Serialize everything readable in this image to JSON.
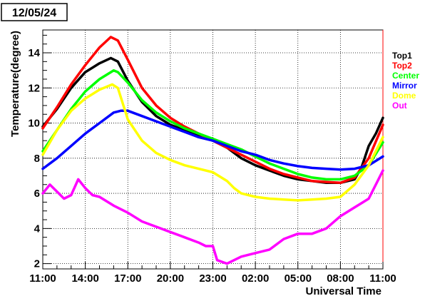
{
  "date_label": "12/05/24",
  "chart_data": {
    "type": "line",
    "title": "",
    "xlabel": "Universal Time",
    "ylabel": "Temperature(degree)",
    "x_ticks": [
      "11:00",
      "14:00",
      "17:00",
      "20:00",
      "23:00",
      "02:00",
      "05:00",
      "08:00",
      "11:00"
    ],
    "x_tick_hours": [
      0,
      3,
      6,
      9,
      12,
      15,
      18,
      21,
      24
    ],
    "xlim": [
      0,
      24
    ],
    "ylim": [
      1.7,
      15.3
    ],
    "y_ticks": [
      2,
      4,
      6,
      8,
      10,
      12,
      14
    ],
    "grid": true,
    "legend_position": "right",
    "series": [
      {
        "name": "Top1",
        "color": "#000000",
        "x": [
          0,
          1,
          2,
          3,
          4,
          4.8,
          5.3,
          6,
          7,
          8,
          9,
          10,
          11,
          12,
          13,
          14,
          15,
          16,
          17,
          18,
          19,
          20,
          21,
          22,
          22.5,
          23,
          23.5,
          24
        ],
        "y": [
          9.8,
          10.8,
          12.0,
          12.9,
          13.4,
          13.7,
          13.5,
          12.4,
          11.2,
          10.4,
          9.9,
          9.6,
          9.3,
          9.0,
          8.6,
          8.0,
          7.6,
          7.3,
          7.0,
          6.8,
          6.7,
          6.6,
          6.6,
          6.8,
          7.5,
          8.7,
          9.4,
          10.3
        ]
      },
      {
        "name": "Top2",
        "color": "#ff0000",
        "x": [
          0,
          1,
          2,
          3,
          4,
          4.8,
          5.3,
          6,
          7,
          8,
          9,
          10,
          11,
          12,
          13,
          14,
          15,
          16,
          17,
          18,
          19,
          20,
          21,
          22,
          23,
          24
        ],
        "y": [
          9.7,
          10.9,
          12.2,
          13.3,
          14.3,
          14.9,
          14.7,
          13.6,
          12.0,
          11.0,
          10.3,
          9.8,
          9.4,
          9.0,
          8.6,
          8.2,
          7.8,
          7.4,
          7.1,
          6.9,
          6.7,
          6.65,
          6.6,
          6.9,
          8.0,
          9.9
        ]
      },
      {
        "name": "Center",
        "color": "#00ff00",
        "x": [
          0,
          1,
          2,
          3,
          4,
          5,
          5.3,
          6,
          7,
          8,
          9,
          10,
          11,
          12,
          13,
          14,
          15,
          16,
          17,
          18,
          19,
          20,
          21,
          22,
          23,
          24
        ],
        "y": [
          8.4,
          9.6,
          10.8,
          11.8,
          12.5,
          13.0,
          12.9,
          12.3,
          11.3,
          10.6,
          10.1,
          9.7,
          9.4,
          9.1,
          8.8,
          8.5,
          8.1,
          7.7,
          7.4,
          7.1,
          6.9,
          6.8,
          6.8,
          7.0,
          7.6,
          8.9
        ]
      },
      {
        "name": "Mirror",
        "color": "#0000ff",
        "x": [
          0,
          1,
          2,
          3,
          4,
          5,
          5.5,
          6,
          7,
          8,
          9,
          10,
          11,
          12,
          13,
          14,
          15,
          16,
          17,
          18,
          19,
          20,
          21,
          22,
          23,
          24
        ],
        "y": [
          7.4,
          8.0,
          8.7,
          9.4,
          10.0,
          10.6,
          10.7,
          10.7,
          10.4,
          10.1,
          9.8,
          9.5,
          9.2,
          9.0,
          8.7,
          8.4,
          8.2,
          7.9,
          7.7,
          7.55,
          7.45,
          7.4,
          7.35,
          7.4,
          7.6,
          8.1
        ]
      },
      {
        "name": "Dome",
        "color": "#ffff00",
        "x": [
          0,
          1,
          2,
          3,
          4,
          4.9,
          5.3,
          6,
          7,
          8,
          9,
          10,
          11,
          12,
          13,
          13.5,
          14,
          15,
          16,
          17,
          18,
          19,
          20,
          21,
          22,
          23,
          24
        ],
        "y": [
          8.2,
          9.6,
          10.7,
          11.4,
          11.9,
          12.2,
          12.0,
          10.2,
          9.0,
          8.3,
          7.9,
          7.6,
          7.4,
          7.2,
          6.7,
          6.3,
          6.0,
          5.8,
          5.7,
          5.65,
          5.6,
          5.65,
          5.7,
          5.8,
          6.5,
          7.6,
          9.2
        ]
      },
      {
        "name": "Out",
        "color": "#ff00ff",
        "x": [
          0,
          0.5,
          1,
          1.5,
          2,
          2.5,
          3,
          3.5,
          4,
          5,
          6,
          7,
          8,
          9,
          10,
          11,
          11.5,
          12,
          12.3,
          13,
          14,
          15,
          16,
          17,
          18,
          19,
          20,
          21,
          22,
          23,
          24
        ],
        "y": [
          6.0,
          6.5,
          6.1,
          5.7,
          5.9,
          6.8,
          6.3,
          5.9,
          5.8,
          5.3,
          4.9,
          4.4,
          4.1,
          3.8,
          3.5,
          3.2,
          3.0,
          3.0,
          2.2,
          2.0,
          2.4,
          2.6,
          2.8,
          3.4,
          3.7,
          3.7,
          4.0,
          4.7,
          5.2,
          5.7,
          7.3
        ]
      }
    ]
  }
}
